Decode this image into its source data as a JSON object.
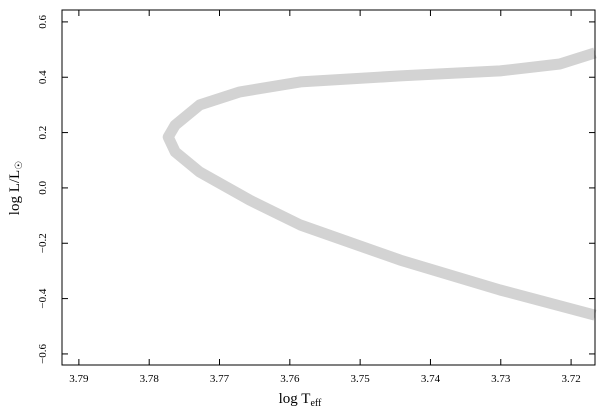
{
  "chart_data": {
    "type": "line",
    "xlabel": {
      "main": "log T",
      "sub": "eff"
    },
    "ylabel": {
      "main": "log L/L",
      "sub": "☉"
    },
    "xlim": [
      3.7924,
      3.7166
    ],
    "xticks": [
      3.79,
      3.78,
      3.77,
      3.76,
      3.75,
      3.74,
      3.73,
      3.72
    ],
    "ylim": [
      -0.64,
      0.643
    ],
    "yticks": [
      {
        "value": -0.6,
        "label": "−0.6"
      },
      {
        "value": -0.4,
        "label": "−0.4"
      },
      {
        "value": -0.2,
        "label": "−0.2"
      },
      {
        "value": 0,
        "label": "0.0"
      },
      0.2,
      0.4,
      0.6
    ],
    "series": [
      {
        "color": "#d3d3d3",
        "x": [
          3.7166,
          3.7216,
          3.7301,
          3.7443,
          3.7585,
          3.7671,
          3.7728,
          3.7763,
          3.7773,
          3.7763,
          3.7728,
          3.7657,
          3.7585,
          3.7443,
          3.7301,
          3.7166
        ],
        "values": [
          0.488,
          0.448,
          0.423,
          0.405,
          0.383,
          0.347,
          0.3,
          0.227,
          0.184,
          0.13,
          0.057,
          -0.044,
          -0.134,
          -0.261,
          -0.369,
          -0.46
        ]
      }
    ]
  }
}
